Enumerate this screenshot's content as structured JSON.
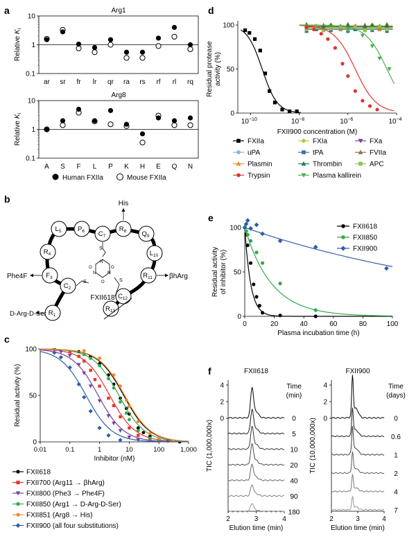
{
  "panel_labels": {
    "a": "a",
    "b": "b",
    "c": "c",
    "d": "d",
    "e": "e",
    "f": "f"
  },
  "chart_data": [
    {
      "id": "a1",
      "type": "scatter",
      "title": "Arg1",
      "ylabel": "Relative K_i",
      "ylabel_main": "Relative ",
      "ylabel_sub": "i",
      "ylabel_k": "K",
      "yscale": "log",
      "ylim": [
        0.1,
        10
      ],
      "yticks": [
        "10",
        "1",
        "0.1"
      ],
      "categories": [
        "ar",
        "sr",
        "fr",
        "lr",
        "qr",
        "ra",
        "rs",
        "rf",
        "rl",
        "rq"
      ],
      "series": [
        {
          "name": "Human FXIIa",
          "values": [
            1.5,
            2.8,
            1.05,
            0.8,
            1.5,
            0.55,
            0.55,
            1.7,
            4.0,
            1.0
          ]
        },
        {
          "name": "Mouse FXIIa",
          "values": [
            1.6,
            3.3,
            0.75,
            0.55,
            1.0,
            0.35,
            0.35,
            0.9,
            1.9,
            0.7
          ]
        }
      ]
    },
    {
      "id": "a2",
      "type": "scatter",
      "title": "Arg8",
      "ylabel": "Relative K_i",
      "ylabel_main": "Relative ",
      "ylabel_sub": "i",
      "ylabel_k": "K",
      "yscale": "log",
      "ylim": [
        0.1,
        10
      ],
      "yticks": [
        "10",
        "1",
        "0.1"
      ],
      "categories": [
        "A",
        "S",
        "F",
        "L",
        "P",
        "K",
        "H",
        "E",
        "Q",
        "N"
      ],
      "series": [
        {
          "name": "Human FXIIa",
          "values": [
            1.0,
            2.0,
            5.0,
            2.0,
            4.5,
            1.5,
            0.7,
            2.5,
            2.0,
            2.5
          ]
        },
        {
          "name": "Mouse FXIIa",
          "values": [
            1.0,
            1.4,
            3.8,
            1.9,
            1.5,
            1.3,
            0.35,
            3.0,
            1.4,
            1.4
          ]
        }
      ],
      "legend": [
        "Human FXIIa",
        "Mouse FXIIa"
      ]
    },
    {
      "id": "c",
      "type": "line",
      "xscale": "log",
      "xlabel": "Inhibitor (nM)",
      "ylabel": "Residual activity (%)",
      "xlim": [
        0.01,
        1000
      ],
      "ylim": [
        0,
        100
      ],
      "xticks": [
        "0.01",
        "0.1",
        "1",
        "10",
        "100",
        "1,000"
      ],
      "yticks": [
        "0",
        "50",
        "100"
      ],
      "series": [
        {
          "name": "FXII618",
          "color": "#000000",
          "ic50": 6.5,
          "x": [
            0.2,
            0.5,
            1,
            2,
            3,
            5,
            8,
            10,
            20,
            30,
            50,
            100,
            200,
            500
          ],
          "y": [
            97,
            92,
            84,
            72,
            62,
            47,
            36,
            30,
            15,
            10,
            6,
            3,
            1,
            0
          ]
        },
        {
          "name": "FXII700 (Arg11 → βhArg)",
          "color": "#e8352d",
          "ic50": 2.2,
          "x": [
            0.1,
            0.2,
            0.3,
            0.5,
            0.7,
            1,
            2,
            3,
            5,
            10,
            20,
            50,
            100
          ],
          "y": [
            97,
            92,
            87,
            77,
            67,
            60,
            47,
            39,
            27,
            15,
            7,
            3,
            1
          ]
        },
        {
          "name": "FXII800 (Phe3 → Phe4F)",
          "color": "#7b3fa0",
          "ic50": 0.9,
          "x": [
            0.03,
            0.05,
            0.1,
            0.2,
            0.3,
            0.5,
            1,
            2,
            3,
            5,
            10,
            20
          ],
          "y": [
            99,
            97,
            93,
            83,
            74,
            60,
            44,
            28,
            20,
            12,
            5,
            2
          ]
        },
        {
          "name": "FXII850 (Arg1 → D-Arg-D-Ser)",
          "color": "#33a84a",
          "ic50": 4.5,
          "x": [
            0.3,
            0.5,
            1,
            2,
            3,
            5,
            8,
            10,
            20,
            50,
            100
          ],
          "y": [
            94,
            90,
            82,
            68,
            58,
            43,
            31,
            24,
            12,
            4,
            2
          ]
        },
        {
          "name": "FXII851 (Arg8 → His)",
          "color": "#f08a2c",
          "ic50": 7.0,
          "x": [
            0.3,
            1,
            3,
            5,
            8,
            10,
            20,
            50,
            100,
            300
          ],
          "y": [
            98,
            90,
            72,
            60,
            45,
            38,
            22,
            9,
            4,
            1
          ]
        },
        {
          "name": "FXII900 (all four substitutions)",
          "color": "#2c5fa8",
          "ic50": 0.35,
          "x": [
            0.03,
            0.05,
            0.1,
            0.2,
            0.3,
            0.5,
            1,
            2,
            5
          ],
          "y": [
            96,
            91,
            80,
            62,
            48,
            33,
            15,
            7,
            2
          ]
        }
      ]
    },
    {
      "id": "d",
      "type": "line",
      "xscale": "log",
      "xlabel": "FXII900 concentration (M)",
      "ylabel": "Residual protease activity (%)",
      "xlim": [
        3e-11,
        0.0001
      ],
      "ylim": [
        0,
        100
      ],
      "xticks": [
        {
          "base": "10",
          "exp": "−10"
        },
        {
          "base": "10",
          "exp": "−8"
        },
        {
          "base": "10",
          "exp": "−6"
        },
        {
          "base": "10",
          "exp": "−4"
        }
      ],
      "yticks": [
        "0",
        "50",
        "100"
      ],
      "series": [
        {
          "name": "FXIIa",
          "color": "#000000",
          "marker": "square",
          "ic50": 3e-10,
          "x": [
            6e-11,
            9e-11,
            1.5e-10,
            2.5e-10,
            4e-10,
            6e-10,
            1e-09,
            2e-09,
            4e-09,
            8e-09
          ],
          "y": [
            94,
            91,
            84,
            71,
            45,
            25,
            12,
            4,
            2,
            2
          ]
        },
        {
          "name": "uPA",
          "color": "#7fb6e0",
          "marker": "diamond",
          "flat": true,
          "level": 97
        },
        {
          "name": "FXa",
          "color": "#7b3fa0",
          "marker": "triangle-down",
          "flat": true,
          "level": 96
        },
        {
          "name": "FXIa",
          "color": "#b6c933",
          "marker": "diamond",
          "flat": true,
          "level": 98
        },
        {
          "name": "tPA",
          "color": "#3a6fb3",
          "marker": "square",
          "flat": true,
          "level": 95
        },
        {
          "name": "FVIIa",
          "color": "#8b7345",
          "marker": "triangle",
          "flat": true,
          "level": 99
        },
        {
          "name": "Plasmin",
          "color": "#f08a2c",
          "marker": "triangle",
          "flat": true,
          "level": 97
        },
        {
          "name": "Thrombin",
          "color": "#1d7a48",
          "marker": "triangle",
          "flat": true,
          "level": 98
        },
        {
          "name": "APC",
          "color": "#8bc34a",
          "marker": "square",
          "flat": true,
          "level": 96
        },
        {
          "name": "Trypsin",
          "color": "#e0342b",
          "marker": "circle",
          "ic50": 2e-06,
          "x": [
            2e-08,
            4e-08,
            8e-08,
            1.5e-07,
            3e-07,
            6e-07,
            1e-06,
            2e-06,
            4e-06,
            8e-06,
            1.6e-05
          ],
          "y": [
            97,
            95,
            90,
            84,
            74,
            56,
            42,
            25,
            14,
            8,
            4
          ]
        },
        {
          "name": "Plasma kallirein",
          "color": "#4caf50",
          "marker": "triangle-down",
          "ic50": 4e-05,
          "x": [
            1e-06,
            4e-06,
            1e-05,
            2e-05,
            5e-05
          ],
          "y": [
            95,
            88,
            76,
            62,
            50
          ]
        }
      ]
    },
    {
      "id": "e",
      "type": "line",
      "xlabel": "Plasma incubation time (h)",
      "ylabel": "Residual activity of inhibitor (%)",
      "xlim": [
        0,
        100
      ],
      "ylim": [
        0,
        100
      ],
      "xticks": [
        "0",
        "20",
        "40",
        "60",
        "80",
        "100"
      ],
      "yticks": [
        "0",
        "50",
        "100"
      ],
      "series": [
        {
          "name": "FXII618",
          "color": "#000000",
          "k": 0.25,
          "x": [
            0,
            1,
            2,
            4,
            6,
            8,
            10,
            12,
            24,
            48
          ],
          "y": [
            100,
            92,
            80,
            60,
            36,
            22,
            12,
            4,
            1,
            0
          ]
        },
        {
          "name": "FXII850",
          "color": "#33a84a",
          "k": 0.055,
          "x": [
            0,
            1,
            2,
            4,
            8,
            12,
            24,
            48
          ],
          "y": [
            100,
            96,
            92,
            85,
            72,
            60,
            37,
            7
          ]
        },
        {
          "name": "FXII900",
          "color": "#2c5fa8",
          "k": 0.0058,
          "x": [
            0,
            1,
            2,
            4,
            8,
            12,
            24,
            48,
            96
          ],
          "y": [
            100,
            104,
            108,
            99,
            103,
            93,
            85,
            78,
            54
          ]
        }
      ]
    },
    {
      "id": "f1",
      "type": "line",
      "title": "FXII618",
      "xlabel": "Elution time (min)",
      "ylabel": "TIC (1,000,000x)",
      "xlim": [
        2,
        4
      ],
      "xticks": [
        "2",
        "3",
        "4"
      ],
      "yticks": [
        "0",
        "2",
        "4"
      ],
      "label_header": [
        "Time",
        "(min)"
      ],
      "series": [
        {
          "name": "0",
          "label": "0",
          "peak": 2.85,
          "height": 3.3
        },
        {
          "name": "5",
          "label": "5",
          "peak": 2.85,
          "height": 2.6
        },
        {
          "name": "10",
          "label": "10",
          "peak": 2.85,
          "height": 2.4
        },
        {
          "name": "20",
          "label": "20",
          "peak": 2.85,
          "height": 2.2
        },
        {
          "name": "40",
          "label": "40",
          "peak": 2.85,
          "height": 1.7
        },
        {
          "name": "90",
          "label": "90",
          "peak": 2.85,
          "height": 1.2
        },
        {
          "name": "180",
          "label": "180",
          "peak": 2.85,
          "height": 0.9
        }
      ]
    },
    {
      "id": "f2",
      "type": "line",
      "title": "FXII900",
      "xlabel": "Elution time (min)",
      "ylabel": "TIC (10,000,000x)",
      "xlim": [
        2,
        4
      ],
      "xticks": [
        "2",
        "3",
        "4"
      ],
      "yticks": [
        "0",
        "2",
        "4"
      ],
      "label_header": [
        "Time",
        "(days)"
      ],
      "series": [
        {
          "name": "0",
          "label": "0",
          "peak": 2.8,
          "height": 4.6
        },
        {
          "name": "0.6",
          "label": "0.6",
          "peak": 2.8,
          "height": 3.1
        },
        {
          "name": "1",
          "label": "1",
          "peak": 2.8,
          "height": 3.1
        },
        {
          "name": "2",
          "label": "2",
          "peak": 2.8,
          "height": 2.3
        },
        {
          "name": "4",
          "label": "4",
          "peak": 2.8,
          "height": 1.8
        },
        {
          "name": "7",
          "label": "7",
          "peak": 2.8,
          "height": 1.4
        }
      ]
    }
  ],
  "structure": {
    "residues": [
      {
        "name": "L",
        "sub": "5"
      },
      {
        "name": "P",
        "sub": "6"
      },
      {
        "name": "C",
        "sub": "7"
      },
      {
        "name": "R",
        "sub": "8"
      },
      {
        "name": "Q",
        "sub": "9"
      },
      {
        "name": "L",
        "sub": "10"
      },
      {
        "name": "R",
        "sub": "11"
      },
      {
        "name": "C",
        "sub": "12"
      },
      {
        "name": "R",
        "sub": "13"
      },
      {
        "name": "R",
        "sub": "4"
      },
      {
        "name": "F",
        "sub": "3"
      },
      {
        "name": "C",
        "sub": "2"
      },
      {
        "name": "R",
        "sub": "1"
      }
    ],
    "compound": "FXII618",
    "annotations": [
      "His",
      "Phe4F",
      "βhArg",
      "D-Arg-D-Ser"
    ],
    "atoms": {
      "s": "S",
      "n": "N",
      "o": "O"
    }
  }
}
